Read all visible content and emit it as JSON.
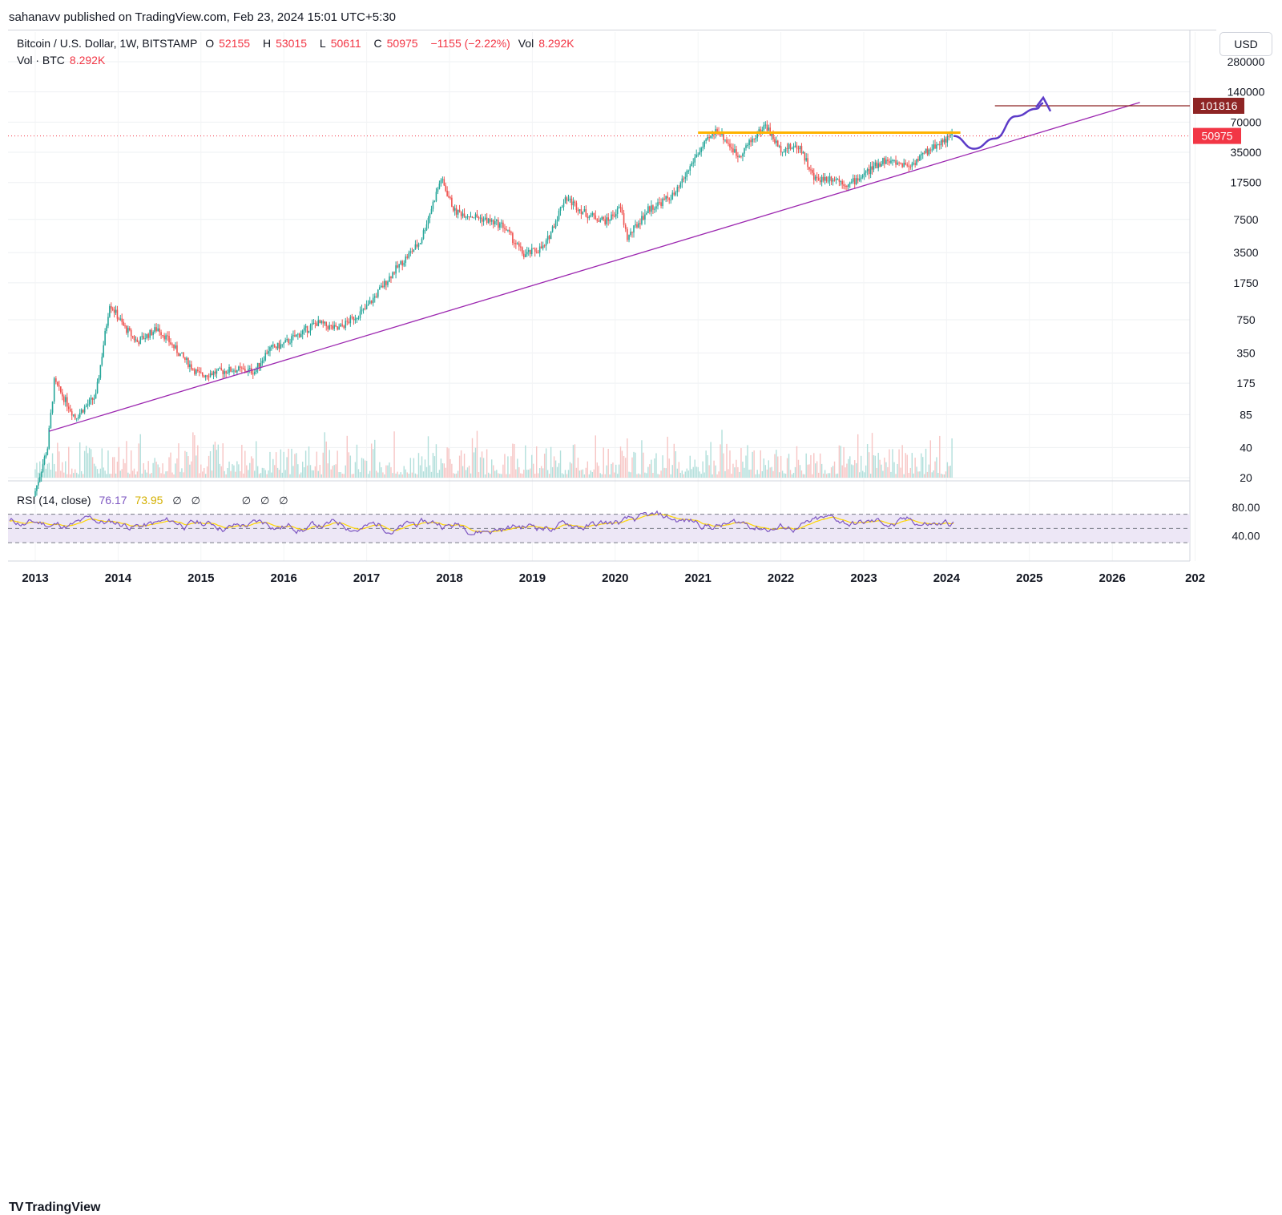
{
  "header": {
    "published": "sahanavv published on TradingView.com, Feb 23, 2024 15:01 UTC+5:30"
  },
  "legend": {
    "symbol": "Bitcoin / U.S. Dollar, 1W, BITSTAMP",
    "o_label": "O",
    "o_value": "52155",
    "h_label": "H",
    "h_value": "53015",
    "l_label": "L",
    "l_value": "50611",
    "c_label": "C",
    "c_value": "50975",
    "change": "−1155 (−2.22%)",
    "vol_label": "Vol",
    "vol_value": "8.292K",
    "vol_series": "Vol · BTC",
    "vol_series_value": "8.292K"
  },
  "currency_button": "USD",
  "rsi_legend": {
    "name": "RSI (14, close)",
    "value1": "76.17",
    "value2": "73.95",
    "null_marks": [
      "∅",
      "∅",
      "∅",
      "∅",
      "∅"
    ]
  },
  "footer": {
    "logo_text": "TradingView"
  },
  "colors": {
    "up": "#26a69a",
    "down": "#ef5350",
    "trendline": "#9c27b0",
    "resistance": "#ffb300",
    "target_line": "#8e2424",
    "projection": "#5c3bc8",
    "rsi_line": "#7e57c2",
    "rsi_ma": "#ffd600",
    "rsi_band": "#ede7f6"
  },
  "chart_data": {
    "type": "candlestick",
    "title": "Bitcoin / U.S. Dollar, 1W, BITSTAMP",
    "y_scale": "log",
    "y_ticks": [
      "280000",
      "140000",
      "70000",
      "35000",
      "17500",
      "7500",
      "3500",
      "1750",
      "750",
      "350",
      "175",
      "85",
      "40",
      "20"
    ],
    "x_ticks": [
      "2013",
      "2014",
      "2015",
      "2016",
      "2017",
      "2018",
      "2019",
      "2020",
      "2021",
      "2022",
      "2023",
      "2024",
      "2025",
      "2026",
      "202"
    ],
    "last_price_label": "50975",
    "target_label": "101816",
    "price_path": [
      [
        "2013-01",
        13
      ],
      [
        "2013-03",
        40
      ],
      [
        "2013-04",
        180
      ],
      [
        "2013-07",
        80
      ],
      [
        "2013-10",
        130
      ],
      [
        "2013-12",
        1100
      ],
      [
        "2014-02",
        650
      ],
      [
        "2014-04",
        450
      ],
      [
        "2014-07",
        620
      ],
      [
        "2014-10",
        350
      ],
      [
        "2015-01",
        210
      ],
      [
        "2015-06",
        240
      ],
      [
        "2015-09",
        230
      ],
      [
        "2015-11",
        380
      ],
      [
        "2016-01",
        420
      ],
      [
        "2016-06",
        700
      ],
      [
        "2016-09",
        600
      ],
      [
        "2017-01",
        950
      ],
      [
        "2017-05",
        2200
      ],
      [
        "2017-09",
        4500
      ],
      [
        "2017-12",
        19000
      ],
      [
        "2018-02",
        9000
      ],
      [
        "2018-05",
        8000
      ],
      [
        "2018-09",
        6500
      ],
      [
        "2018-12",
        3300
      ],
      [
        "2019-03",
        4000
      ],
      [
        "2019-06",
        12500
      ],
      [
        "2019-09",
        8500
      ],
      [
        "2019-12",
        7200
      ],
      [
        "2020-02",
        9800
      ],
      [
        "2020-03",
        4900
      ],
      [
        "2020-06",
        9400
      ],
      [
        "2020-10",
        13500
      ],
      [
        "2021-01",
        33000
      ],
      [
        "2021-04",
        60000
      ],
      [
        "2021-07",
        32000
      ],
      [
        "2021-11",
        66000
      ],
      [
        "2022-01",
        38000
      ],
      [
        "2022-04",
        40000
      ],
      [
        "2022-06",
        19000
      ],
      [
        "2022-09",
        19500
      ],
      [
        "2022-11",
        16500
      ],
      [
        "2023-02",
        23000
      ],
      [
        "2023-04",
        29000
      ],
      [
        "2023-08",
        26000
      ],
      [
        "2023-10",
        34000
      ],
      [
        "2023-12",
        43000
      ],
      [
        "2024-02",
        50975
      ]
    ],
    "projection_path": [
      [
        "2024-02",
        50975
      ],
      [
        "2024-05",
        38000
      ],
      [
        "2024-08",
        48000
      ],
      [
        "2024-11",
        80000
      ],
      [
        "2025-02",
        95000
      ],
      [
        "2025-03",
        108000
      ]
    ],
    "trendline": [
      [
        "2013-03",
        58
      ],
      [
        "2026-05",
        110000
      ]
    ],
    "resistance_level": 55000,
    "target_level": 101816,
    "rsi": {
      "ticks": [
        "80.00",
        "40.00"
      ],
      "upper_band": 70,
      "middle": 50,
      "lower_band": 30
    }
  }
}
